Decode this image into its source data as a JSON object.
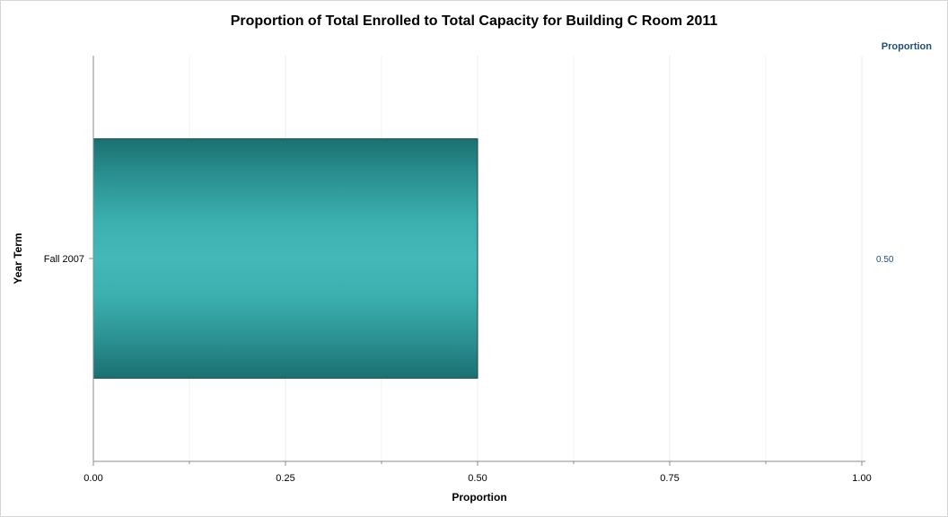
{
  "chart_data": {
    "type": "bar",
    "orientation": "horizontal",
    "title": "Proportion of Total Enrolled to Total Capacity for Building C Room 2011",
    "xlabel": "Proportion",
    "ylabel": "Year Term",
    "xlim": [
      0,
      1
    ],
    "x_ticks": [
      "0.00",
      "0.25",
      "0.50",
      "0.75",
      "1.00"
    ],
    "grid": true,
    "categories": [
      "Fall 2007"
    ],
    "values": [
      0.5
    ],
    "stat_column": {
      "header": "Proportion",
      "values": [
        "0.50"
      ]
    },
    "colors": {
      "bar_edge": "#1a6e6e",
      "bar_center": "#44b8b8",
      "bar_dark": "#1b7272",
      "stat_text": "#1f4e79",
      "axis": "#8c8c8c",
      "grid": "#ececec"
    }
  }
}
